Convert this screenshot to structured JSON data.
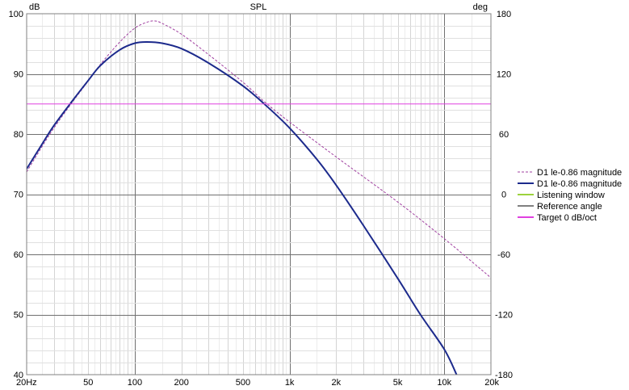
{
  "chart_data": {
    "type": "line",
    "title": "SPL",
    "y_left_unit": "dB",
    "y_right_unit": "deg",
    "x_scale": "log",
    "xlim": [
      20,
      20000
    ],
    "ylim": [
      40,
      100
    ],
    "y_right_lim": [
      -180,
      180
    ],
    "grid": true,
    "legend_position": "right",
    "x_ticks": [
      {
        "value": 20,
        "label": "20Hz"
      },
      {
        "value": 50,
        "label": "50"
      },
      {
        "value": 100,
        "label": "100"
      },
      {
        "value": 200,
        "label": "200"
      },
      {
        "value": 500,
        "label": "500"
      },
      {
        "value": 1000,
        "label": "1k"
      },
      {
        "value": 2000,
        "label": "2k"
      },
      {
        "value": 5000,
        "label": "5k"
      },
      {
        "value": 10000,
        "label": "10k"
      },
      {
        "value": 20000,
        "label": "20k"
      }
    ],
    "y_left_ticks": [
      {
        "value": 100,
        "label": "100"
      },
      {
        "value": 90,
        "label": "90"
      },
      {
        "value": 80,
        "label": "80"
      },
      {
        "value": 70,
        "label": "70"
      },
      {
        "value": 60,
        "label": "60"
      },
      {
        "value": 50,
        "label": "50"
      },
      {
        "value": 40,
        "label": "40"
      }
    ],
    "y_right_ticks": [
      {
        "value": 180,
        "label": "180"
      },
      {
        "value": 120,
        "label": "120"
      },
      {
        "value": 60,
        "label": "60"
      },
      {
        "value": 0,
        "label": "0"
      },
      {
        "value": -60,
        "label": "-60"
      },
      {
        "value": -120,
        "label": "-120"
      },
      {
        "value": -180,
        "label": "-180"
      }
    ],
    "series": [
      {
        "name": "D1 le-0.86 magnitude",
        "color": "#a040a0",
        "style": "dashed",
        "x": [
          20,
          25,
          30,
          40,
          50,
          60,
          80,
          100,
          120,
          135,
          150,
          200,
          300,
          500,
          700,
          1000,
          2000,
          5000,
          10000,
          20000
        ],
        "y": [
          73.7,
          77.8,
          81.0,
          85.5,
          88.8,
          91.6,
          95.3,
          97.6,
          98.6,
          98.8,
          98.4,
          96.6,
          93.2,
          88.6,
          85.2,
          82.0,
          76.2,
          68.7,
          62.6,
          56.1
        ]
      },
      {
        "name": "D1 le-0.86 magnitude",
        "color": "#1c2a8c",
        "style": "solid",
        "x": [
          20,
          25,
          30,
          40,
          50,
          60,
          80,
          100,
          120,
          150,
          200,
          300,
          500,
          700,
          1000,
          1500,
          2000,
          3000,
          5000,
          7000,
          10000,
          12000
        ],
        "y": [
          74.2,
          78.2,
          81.4,
          85.7,
          88.9,
          91.4,
          94.0,
          95.1,
          95.3,
          95.1,
          94.2,
          91.8,
          88.0,
          84.8,
          81.0,
          75.8,
          71.5,
          64.8,
          56.0,
          50.0,
          44.2,
          40.0
        ]
      },
      {
        "name": "Listening window",
        "color": "#9cd23c",
        "style": "solid",
        "x": [],
        "y": []
      },
      {
        "name": "Reference angle",
        "color": "#808080",
        "style": "solid",
        "x": [],
        "y": []
      },
      {
        "name": "Target 0 dB/oct",
        "color": "#e040e0",
        "style": "solid",
        "x": [
          20,
          20000
        ],
        "y": [
          85.0,
          85.0
        ]
      }
    ]
  }
}
